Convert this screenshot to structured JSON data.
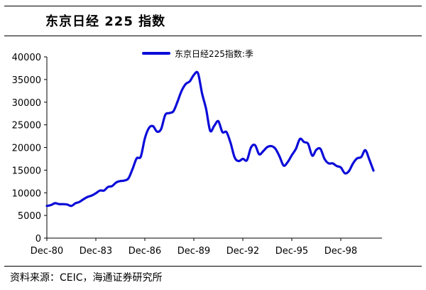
{
  "header": {
    "title": "东京日经 225 指数"
  },
  "footer": {
    "source": "资料来源：CEIC，海通证券研究所"
  },
  "chart_data": {
    "type": "line",
    "title": "东京日经 225 指数",
    "xlabel": "",
    "ylabel": "",
    "ylim": [
      0,
      40000
    ],
    "yticks": [
      "0",
      "5000",
      "10000",
      "15000",
      "20000",
      "25000",
      "30000",
      "35000",
      "40000"
    ],
    "xticks": [
      "Dec-80",
      "Dec-83",
      "Dec-86",
      "Dec-89",
      "Dec-92",
      "Dec-95",
      "Dec-98"
    ],
    "grid": false,
    "legend_position": "top",
    "series": [
      {
        "name": "东京日经225指数:季",
        "color": "#0b0bd9",
        "x": [
          1980.75,
          1981.0,
          1981.25,
          1981.5,
          1981.75,
          1982.0,
          1982.25,
          1982.5,
          1982.75,
          1983.0,
          1983.25,
          1983.5,
          1983.75,
          1984.0,
          1984.25,
          1984.5,
          1984.75,
          1985.0,
          1985.25,
          1985.5,
          1985.75,
          1986.0,
          1986.25,
          1986.5,
          1986.75,
          1987.0,
          1987.25,
          1987.5,
          1987.75,
          1988.0,
          1988.25,
          1988.5,
          1988.75,
          1989.0,
          1989.25,
          1989.5,
          1989.75,
          1990.0,
          1990.25,
          1990.5,
          1990.75,
          1991.0,
          1991.25,
          1991.5,
          1991.75,
          1992.0,
          1992.25,
          1992.5,
          1992.75,
          1993.0,
          1993.25,
          1993.5,
          1993.75,
          1994.0,
          1994.25,
          1994.5,
          1994.75,
          1995.0,
          1995.25,
          1995.5,
          1995.75,
          1996.0,
          1996.25,
          1996.5,
          1996.75,
          1997.0,
          1997.25,
          1997.5,
          1997.75,
          1998.0,
          1998.25,
          1998.5,
          1998.75,
          1999.0,
          1999.25,
          1999.5,
          1999.75,
          2000.0,
          2000.25,
          2000.5,
          2000.75
        ],
        "values": [
          7100,
          7300,
          7700,
          7500,
          7500,
          7400,
          7100,
          7700,
          8000,
          8600,
          9100,
          9400,
          9900,
          10500,
          10500,
          11300,
          11500,
          12300,
          12600,
          12700,
          13200,
          15300,
          17600,
          18000,
          22000,
          24300,
          24700,
          23500,
          24100,
          27200,
          27600,
          28000,
          30100,
          32500,
          34000,
          34600,
          36000,
          36400,
          32000,
          28500,
          23700,
          24800,
          25800,
          23400,
          23400,
          21000,
          17800,
          17000,
          17500,
          17200,
          20000,
          20500,
          18500,
          19200,
          20100,
          20300,
          19700,
          18000,
          16000,
          16800,
          18300,
          19700,
          21900,
          21200,
          20800,
          18200,
          19500,
          19700,
          17500,
          16500,
          16500,
          15900,
          15600,
          14300,
          14800,
          16500,
          17600,
          17900,
          19400,
          17300,
          14900
        ]
      }
    ]
  }
}
